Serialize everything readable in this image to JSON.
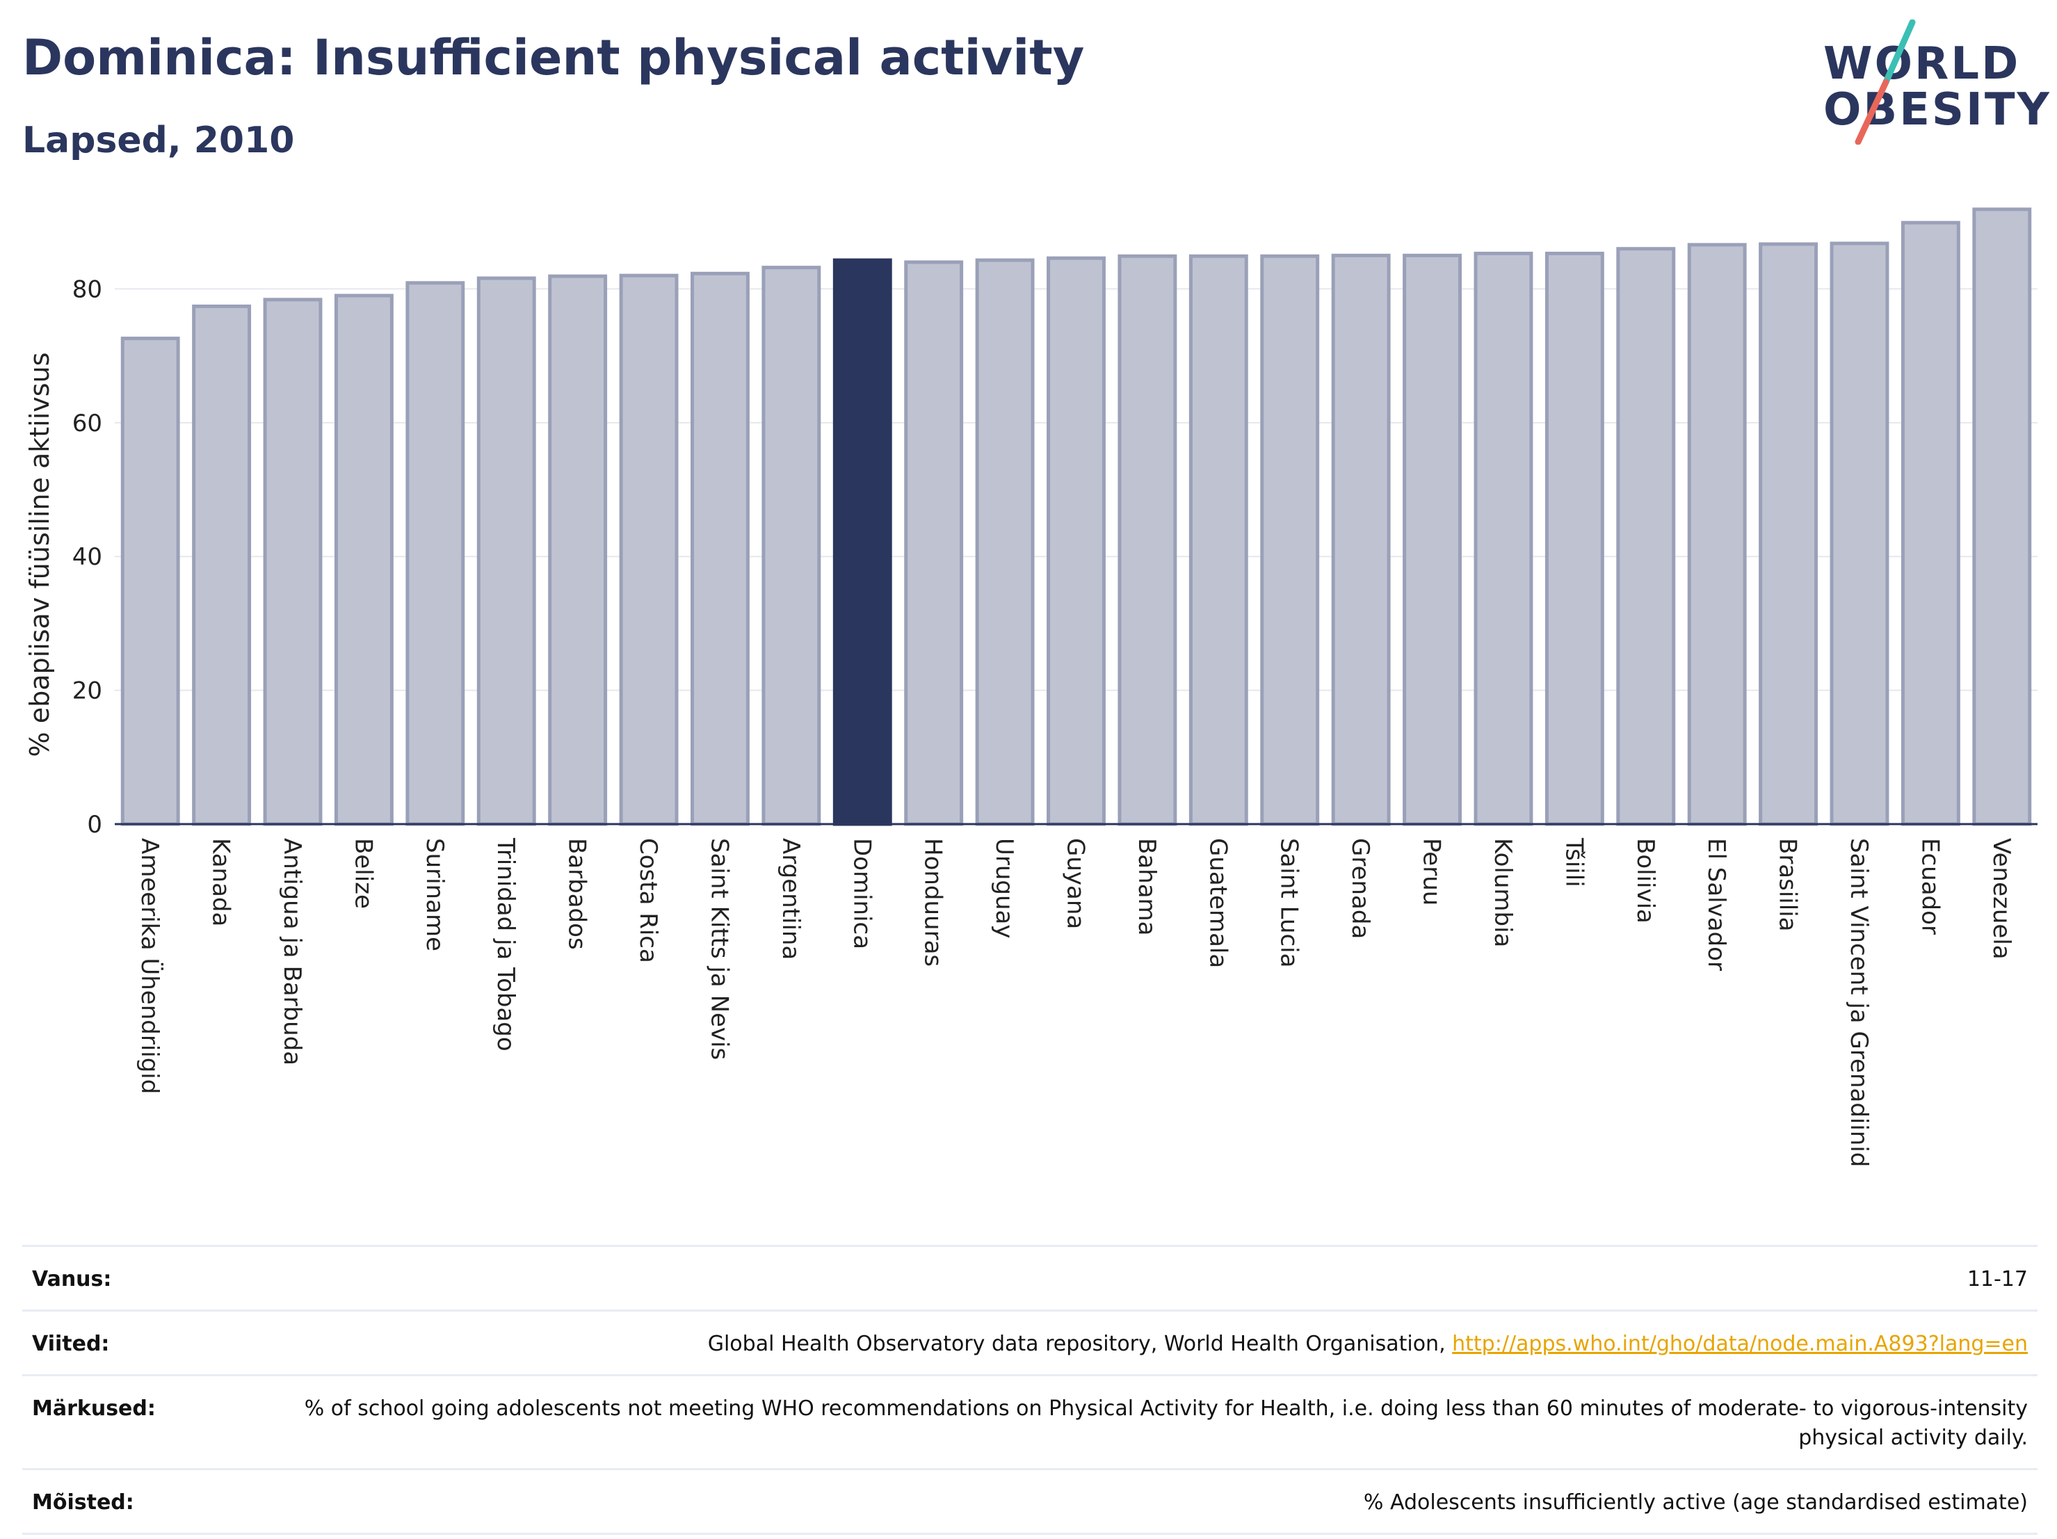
{
  "header": {
    "title": "Dominica: Insufficient physical activity",
    "subtitle": "Lapsed, 2010"
  },
  "logo": {
    "line1": "WORLD",
    "line2": "OBESITY",
    "colors": {
      "text": "#2b365e",
      "slash_top": "#3bbfb4",
      "slash_bottom": "#e8675a"
    }
  },
  "colors": {
    "bar": "#bfc3d1",
    "bar_stroke": "#9aa0b8",
    "highlight": "#2b365e",
    "axis": "#2b365e",
    "grid": "#e6e8ee",
    "link": "#e8a400"
  },
  "chart_data": {
    "type": "bar",
    "ylabel": "% ebapiisav füüsiline aktiivsus",
    "xlabel": "",
    "ylim": [
      0,
      92
    ],
    "yticks": [
      0,
      20,
      40,
      60,
      80
    ],
    "grid": true,
    "highlight": "Dominica",
    "categories": [
      "Ameerika Ühendriigid",
      "Kanada",
      "Antigua ja Barbuda",
      "Belize",
      "Suriname",
      "Trinidad ja Tobago",
      "Barbados",
      "Costa Rica",
      "Saint Kitts ja Nevis",
      "Argentiina",
      "Dominica",
      "Honduuras",
      "Uruguay",
      "Guyana",
      "Bahama",
      "Guatemala",
      "Saint Lucia",
      "Grenada",
      "Peruu",
      "Kolumbia",
      "Tšiili",
      "Boliivia",
      "El Salvador",
      "Brasiilia",
      "Saint Vincent ja Grenadiinid",
      "Ecuador",
      "Venezuela"
    ],
    "values": [
      72.6,
      77.4,
      78.4,
      79.0,
      80.9,
      81.6,
      81.9,
      82.0,
      82.3,
      83.2,
      84.3,
      84.0,
      84.3,
      84.6,
      84.9,
      84.9,
      84.9,
      85.0,
      85.0,
      85.3,
      85.3,
      86.0,
      86.6,
      86.7,
      86.8,
      89.9,
      91.9
    ]
  },
  "info": [
    {
      "label": "Vanus:",
      "value": "11-17"
    },
    {
      "label": "Viited:",
      "value": "Global Health Observatory data repository, World Health Organisation, ",
      "link": "http://apps.who.int/gho/data/node.main.A893?lang=en"
    },
    {
      "label": "Märkused:",
      "value": "% of school going adolescents not meeting WHO recommendations on Physical Activity for Health, i.e. doing less than 60 minutes of moderate- to vigorous-intensity physical activity daily."
    },
    {
      "label": "Mõisted:",
      "value": "% Adolescents insufficiently active (age standardised estimate)"
    }
  ]
}
